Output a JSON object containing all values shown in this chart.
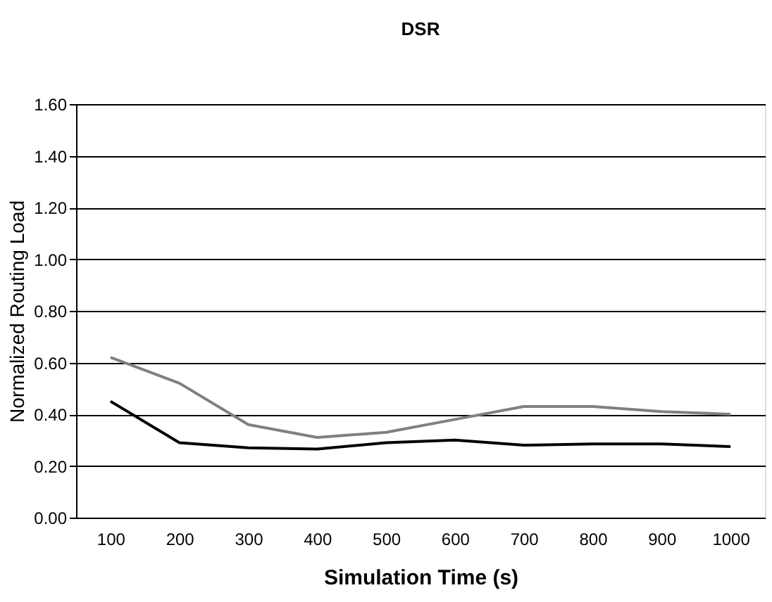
{
  "chart_data": {
    "type": "line",
    "title": "DSR",
    "xlabel": "Simulation Time (s)",
    "ylabel": "Normalized Routing Load",
    "categories": [
      "100",
      "200",
      "300",
      "400",
      "500",
      "600",
      "700",
      "800",
      "900",
      "1000"
    ],
    "series": [
      {
        "color": "#808080",
        "values": [
          0.62,
          0.52,
          0.36,
          0.31,
          0.33,
          0.38,
          0.43,
          0.43,
          0.41,
          0.4
        ]
      },
      {
        "color": "#000000",
        "values": [
          0.45,
          0.29,
          0.27,
          0.265,
          0.29,
          0.3,
          0.28,
          0.285,
          0.285,
          0.275
        ]
      }
    ],
    "ylim": [
      0,
      1.6
    ],
    "yticks": [
      {
        "value": 0,
        "label": "0.00"
      },
      {
        "value": 0.2,
        "label": "0.20"
      },
      {
        "value": 0.4,
        "label": "0.40"
      },
      {
        "value": 0.6,
        "label": "0.60"
      },
      {
        "value": 0.8,
        "label": "0.80"
      },
      {
        "value": 1.0,
        "label": "1.00"
      },
      {
        "value": 1.2,
        "label": "1.20"
      },
      {
        "value": 1.4,
        "label": "1.40"
      },
      {
        "value": 1.6,
        "label": "1.60"
      }
    ],
    "grid": "y",
    "legend": false,
    "marker": "none",
    "line_style": "solid"
  }
}
